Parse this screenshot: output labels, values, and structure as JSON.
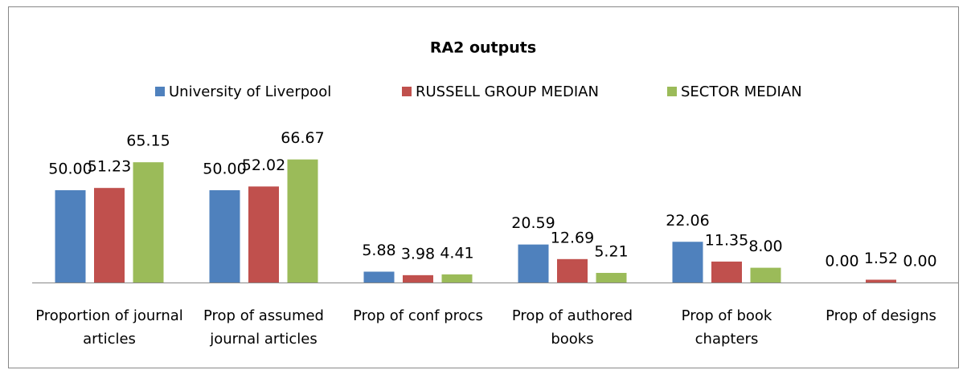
{
  "chart_data": {
    "type": "bar",
    "title": "RA2 outputs",
    "categories": [
      "Proportion of journal articles",
      "Prop of assumed journal articles",
      "Prop of conf procs",
      "Prop of authored books",
      "Prop of book chapters",
      "Prop of designs"
    ],
    "series": [
      {
        "name": "University of Liverpool",
        "color": "#4f81bd",
        "values": [
          50,
          50,
          5.88,
          20.59,
          22.06,
          0
        ],
        "value_labels": [
          "50.00",
          "50.00",
          "5.88",
          "20.59",
          "22.06",
          "0.00"
        ]
      },
      {
        "name": "RUSSELL GROUP MEDIAN",
        "color": "#c0504d",
        "values": [
          51.23,
          52.02,
          3.98,
          12.69,
          11.35,
          1.52
        ],
        "value_labels": [
          "51.23",
          "52.02",
          "3.98",
          "12.69",
          "11.35",
          "1.52"
        ]
      },
      {
        "name": "SECTOR MEDIAN",
        "color": "#9bbb59",
        "values": [
          65.15,
          66.67,
          4.41,
          5.21,
          8,
          0
        ],
        "value_labels": [
          "65.15",
          "66.67",
          "4.41",
          "5.21",
          "8.00",
          "0.00"
        ]
      }
    ],
    "ylim": [
      0,
      80
    ],
    "legend": "top"
  }
}
